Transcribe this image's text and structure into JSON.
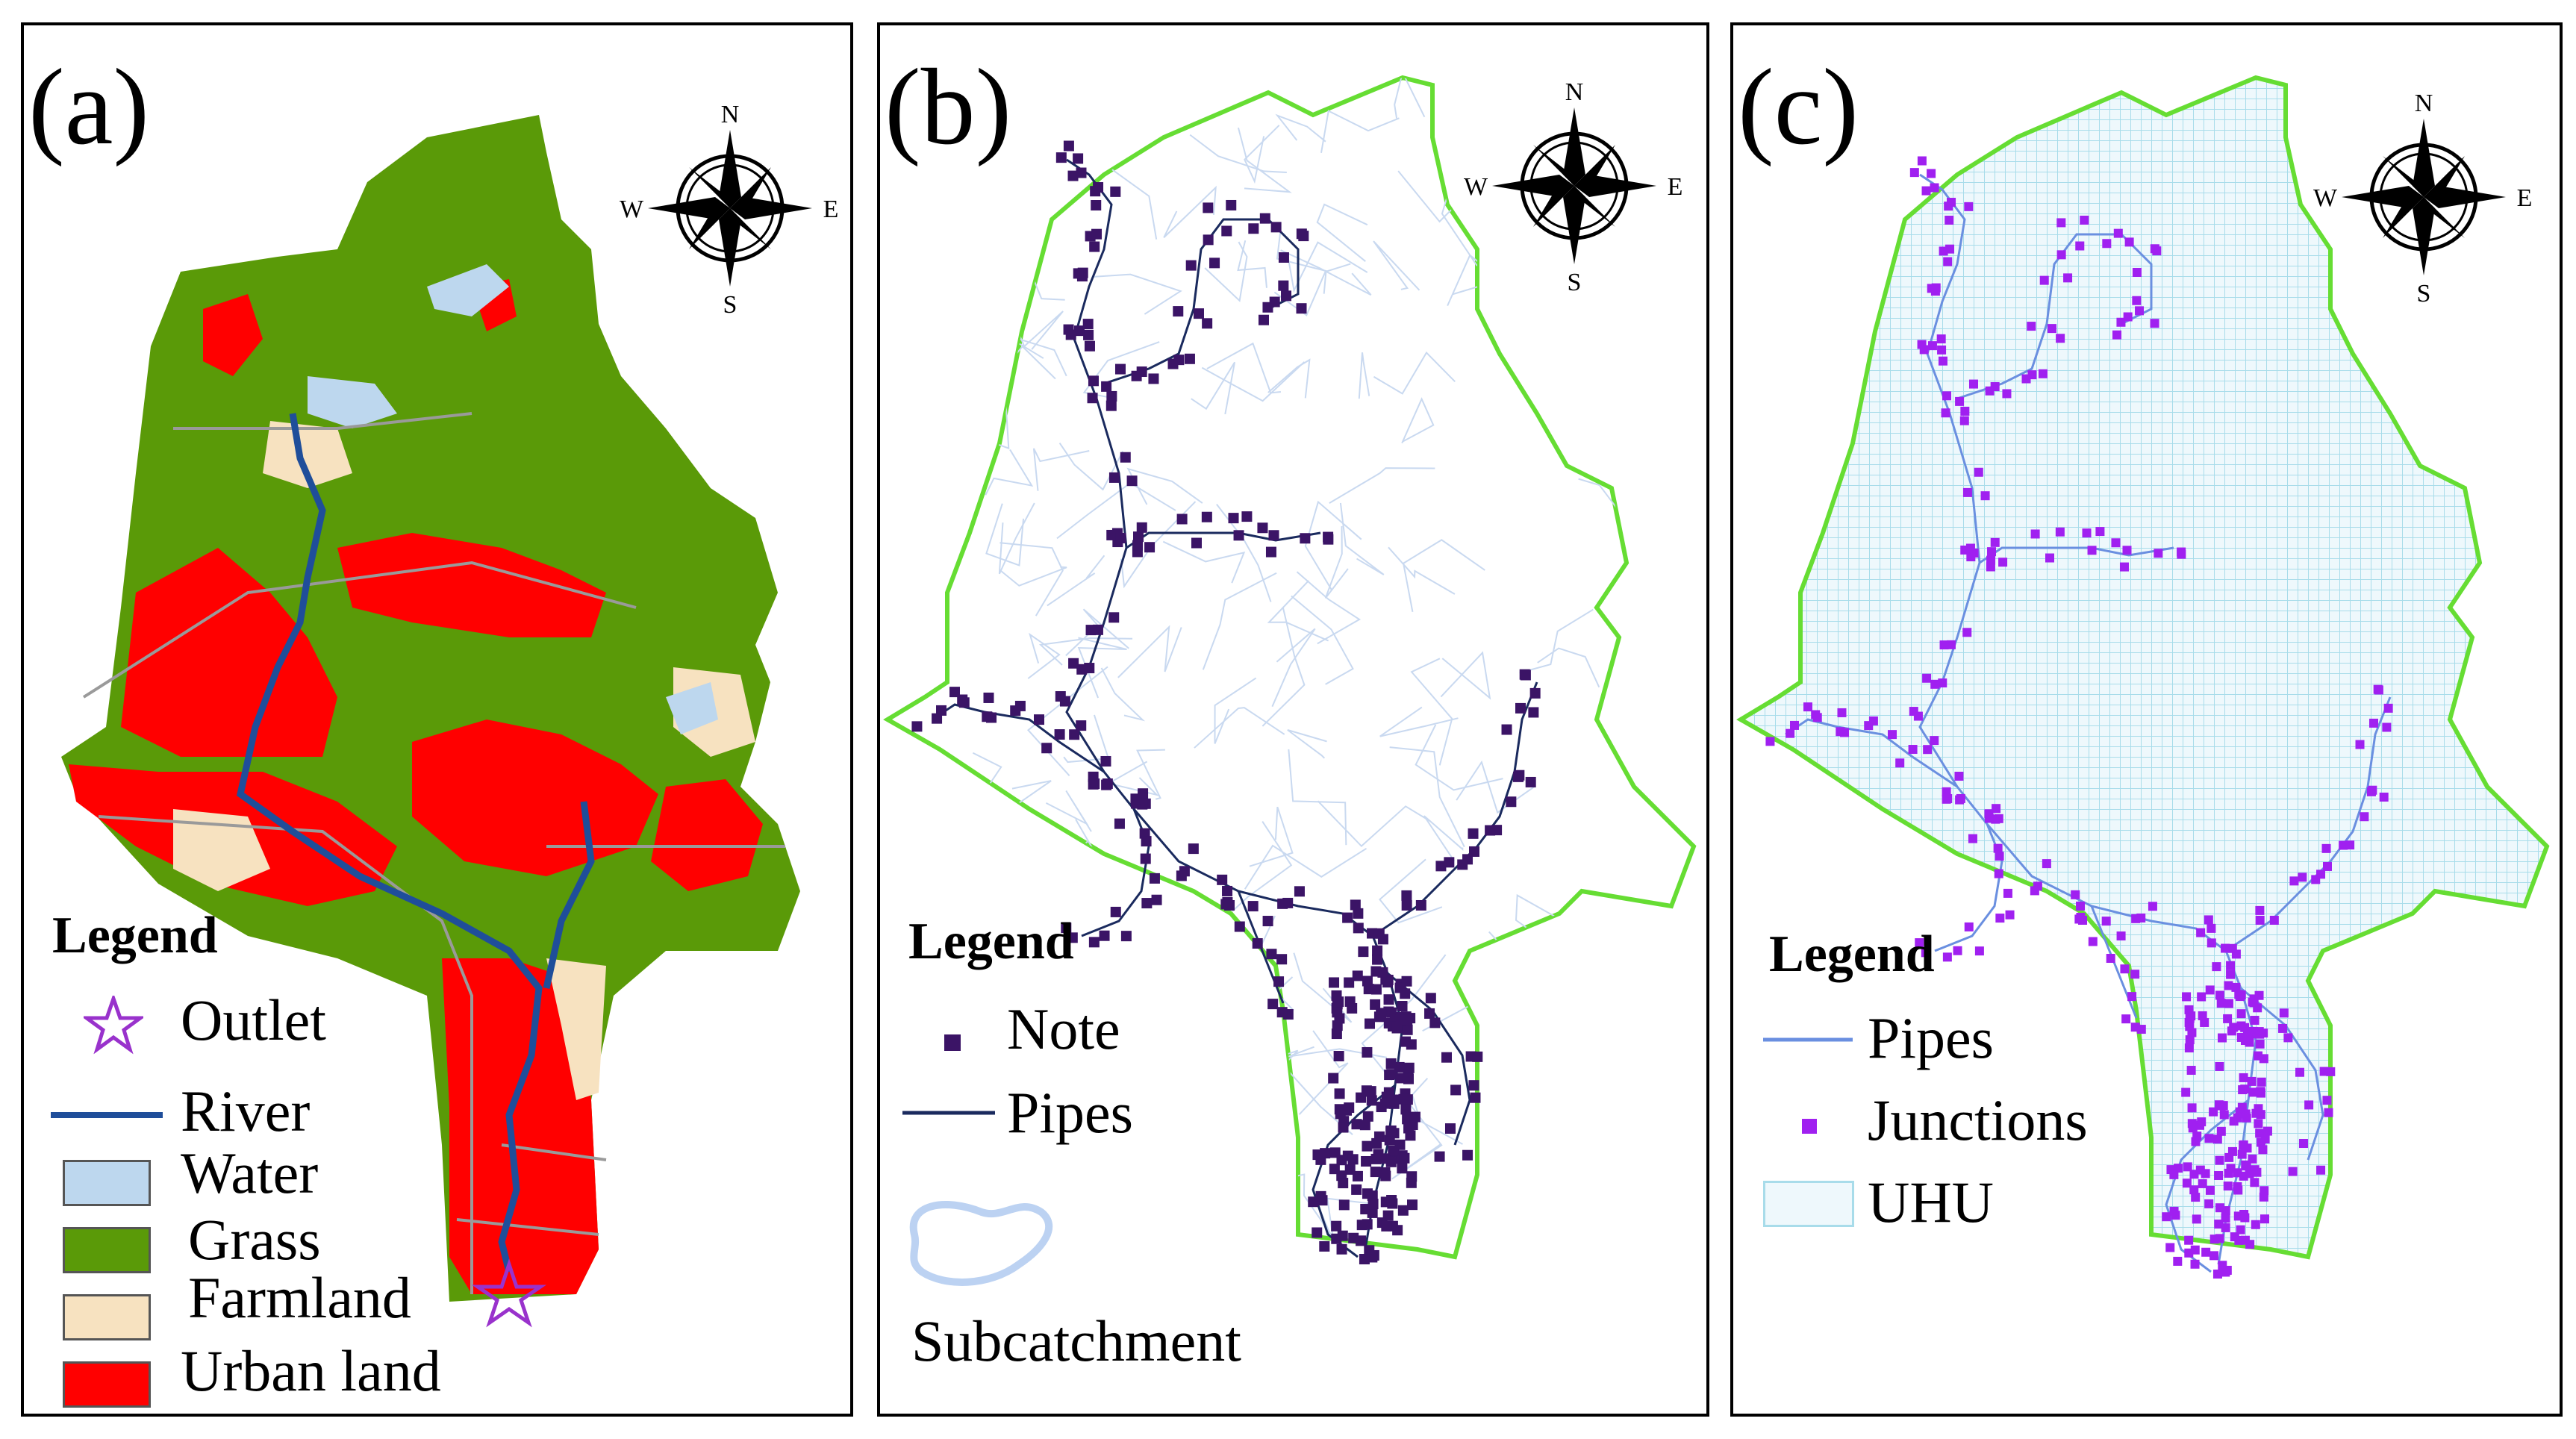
{
  "compass": {
    "n": "N",
    "s": "S",
    "e": "E",
    "w": "W"
  },
  "panels": [
    {
      "id": "a",
      "label": "(a)",
      "legend": {
        "title": "Legend",
        "items": [
          {
            "label": "Outlet",
            "symbol": "star",
            "color": "#9932CC"
          },
          {
            "label": "River",
            "symbol": "line",
            "color": "#1F4E9A"
          },
          {
            "label": "Water",
            "symbol": "box",
            "color": "#BDD7EE"
          },
          {
            "label": "Grass",
            "symbol": "box",
            "color": "#5A9A08"
          },
          {
            "label": "Farmland",
            "symbol": "box",
            "color": "#F7E2C0"
          },
          {
            "label": "Urban land",
            "symbol": "box",
            "color": "#FF0000"
          }
        ]
      }
    },
    {
      "id": "b",
      "label": "(b)",
      "legend": {
        "title": "Legend",
        "items": [
          {
            "label": "Note",
            "symbol": "square",
            "color": "#3B1466"
          },
          {
            "label": "Pipes",
            "symbol": "line",
            "color": "#1A2A5E"
          },
          {
            "label": "Subcatchment",
            "symbol": "blob",
            "color": "#BCD2F2"
          }
        ]
      }
    },
    {
      "id": "c",
      "label": "(c)",
      "legend": {
        "title": "Legend",
        "items": [
          {
            "label": "Pipes",
            "symbol": "line",
            "color": "#6A8FE0"
          },
          {
            "label": "Junctions",
            "symbol": "square",
            "color": "#A020F0"
          },
          {
            "label": "UHU",
            "symbol": "box",
            "color": "#DDEFF7"
          }
        ]
      }
    }
  ],
  "colors": {
    "boundary": "#66DD33",
    "uhu_grid": "#A8DCEA"
  }
}
